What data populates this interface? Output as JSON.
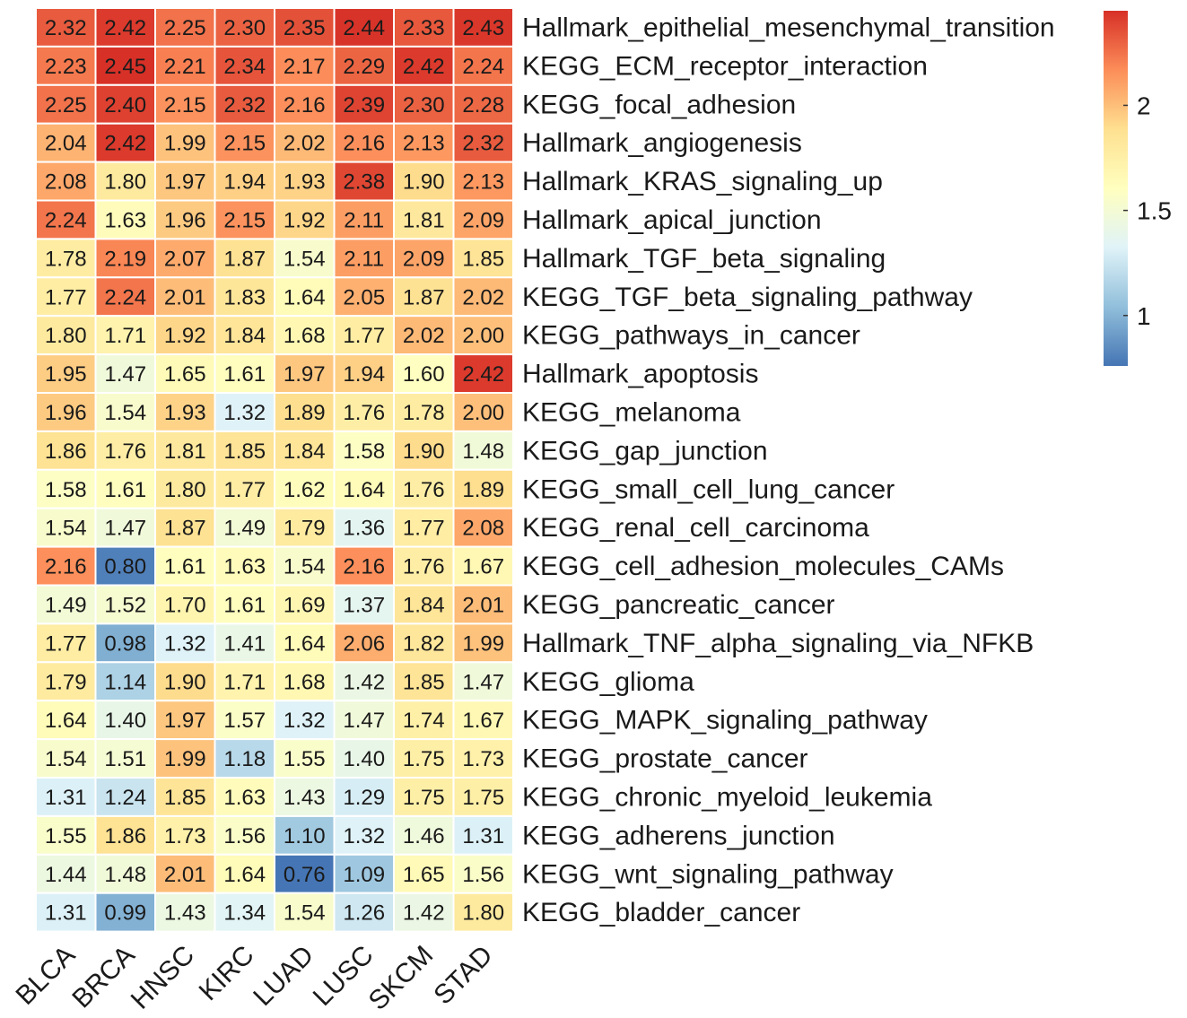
{
  "chart_data": {
    "type": "heatmap",
    "columns": [
      "BLCA",
      "BRCA",
      "HNSC",
      "KIRC",
      "LUAD",
      "LUSC",
      "SKCM",
      "STAD"
    ],
    "rows": [
      "Hallmark_epithelial_mesenchymal_transition",
      "KEGG_ECM_receptor_interaction",
      "KEGG_focal_adhesion",
      "Hallmark_angiogenesis",
      "Hallmark_KRAS_signaling_up",
      "Hallmark_apical_junction",
      "Hallmark_TGF_beta_signaling",
      "KEGG_TGF_beta_signaling_pathway",
      "KEGG_pathways_in_cancer",
      "Hallmark_apoptosis",
      "KEGG_melanoma",
      "KEGG_gap_junction",
      "KEGG_small_cell_lung_cancer",
      "KEGG_renal_cell_carcinoma",
      "KEGG_cell_adhesion_molecules_CAMs",
      "KEGG_pancreatic_cancer",
      "Hallmark_TNF_alpha_signaling_via_NFKB",
      "KEGG_glioma",
      "KEGG_MAPK_signaling_pathway",
      "KEGG_prostate_cancer",
      "KEGG_chronic_myeloid_leukemia",
      "KEGG_adherens_junction",
      "KEGG_wnt_signaling_pathway",
      "KEGG_bladder_cancer"
    ],
    "values": [
      [
        "2.32",
        "2.42",
        "2.25",
        "2.30",
        "2.35",
        "2.44",
        "2.33",
        "2.43"
      ],
      [
        "2.23",
        "2.45",
        "2.21",
        "2.34",
        "2.17",
        "2.29",
        "2.42",
        "2.24"
      ],
      [
        "2.25",
        "2.40",
        "2.15",
        "2.32",
        "2.16",
        "2.39",
        "2.30",
        "2.28"
      ],
      [
        "2.04",
        "2.42",
        "1.99",
        "2.15",
        "2.02",
        "2.16",
        "2.13",
        "2.32"
      ],
      [
        "2.08",
        "1.80",
        "1.97",
        "1.94",
        "1.93",
        "2.38",
        "1.90",
        "2.13"
      ],
      [
        "2.24",
        "1.63",
        "1.96",
        "2.15",
        "1.92",
        "2.11",
        "1.81",
        "2.09"
      ],
      [
        "1.78",
        "2.19",
        "2.07",
        "1.87",
        "1.54",
        "2.11",
        "2.09",
        "1.85"
      ],
      [
        "1.77",
        "2.24",
        "2.01",
        "1.83",
        "1.64",
        "2.05",
        "1.87",
        "2.02"
      ],
      [
        "1.80",
        "1.71",
        "1.92",
        "1.84",
        "1.68",
        "1.77",
        "2.02",
        "2.00"
      ],
      [
        "1.95",
        "1.47",
        "1.65",
        "1.61",
        "1.97",
        "1.94",
        "1.60",
        "2.42"
      ],
      [
        "1.96",
        "1.54",
        "1.93",
        "1.32",
        "1.89",
        "1.76",
        "1.78",
        "2.00"
      ],
      [
        "1.86",
        "1.76",
        "1.81",
        "1.85",
        "1.84",
        "1.58",
        "1.90",
        "1.48"
      ],
      [
        "1.58",
        "1.61",
        "1.80",
        "1.77",
        "1.62",
        "1.64",
        "1.76",
        "1.89"
      ],
      [
        "1.54",
        "1.47",
        "1.87",
        "1.49",
        "1.79",
        "1.36",
        "1.77",
        "2.08"
      ],
      [
        "2.16",
        "0.80",
        "1.61",
        "1.63",
        "1.54",
        "2.16",
        "1.76",
        "1.67"
      ],
      [
        "1.49",
        "1.52",
        "1.70",
        "1.61",
        "1.69",
        "1.37",
        "1.84",
        "2.01"
      ],
      [
        "1.77",
        "0.98",
        "1.32",
        "1.41",
        "1.64",
        "2.06",
        "1.82",
        "1.99"
      ],
      [
        "1.79",
        "1.14",
        "1.90",
        "1.71",
        "1.68",
        "1.42",
        "1.85",
        "1.47"
      ],
      [
        "1.64",
        "1.40",
        "1.97",
        "1.57",
        "1.32",
        "1.47",
        "1.74",
        "1.67"
      ],
      [
        "1.54",
        "1.51",
        "1.99",
        "1.18",
        "1.55",
        "1.40",
        "1.75",
        "1.73"
      ],
      [
        "1.31",
        "1.24",
        "1.85",
        "1.63",
        "1.43",
        "1.29",
        "1.75",
        "1.75"
      ],
      [
        "1.55",
        "1.86",
        "1.73",
        "1.56",
        "1.10",
        "1.32",
        "1.46",
        "1.31"
      ],
      [
        "1.44",
        "1.48",
        "2.01",
        "1.64",
        "0.76",
        "1.09",
        "1.65",
        "1.56"
      ],
      [
        "1.31",
        "0.99",
        "1.43",
        "1.34",
        "1.54",
        "1.26",
        "1.42",
        "1.80"
      ]
    ],
    "color_range": [
      0.76,
      2.45
    ],
    "colors": [
      "#4575b4",
      "#91bfdb",
      "#e0f3f8",
      "#ffffbf",
      "#fee090",
      "#fc8d59",
      "#d73027"
    ],
    "legend": {
      "placement": "right",
      "ticks": [
        {
          "value": 2,
          "label": "2"
        },
        {
          "value": 1.5,
          "label": "1.5"
        },
        {
          "value": 1,
          "label": "1"
        }
      ]
    }
  }
}
